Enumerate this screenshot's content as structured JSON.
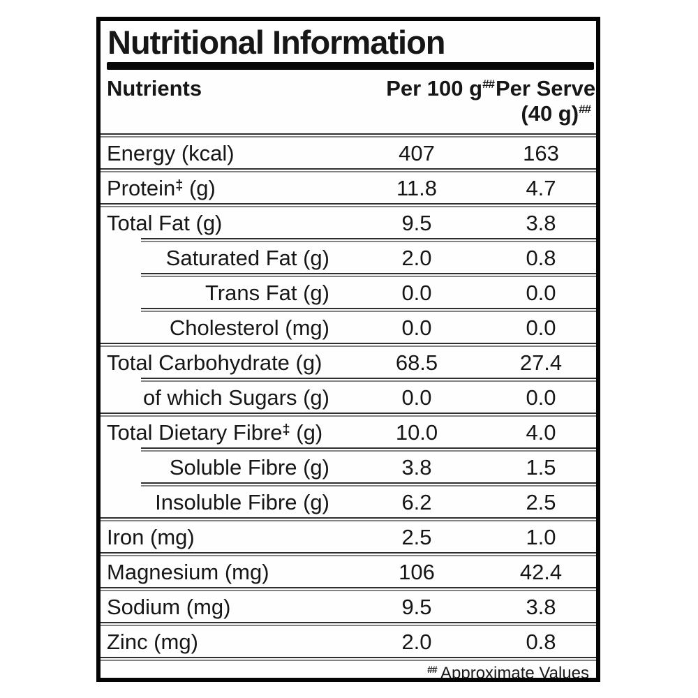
{
  "label": {
    "title": "Nutritional Information",
    "header": {
      "nutrients": "Nutrients",
      "per_100g": "Per 100 g",
      "per_100g_mark": "##",
      "per_serve_line1": "Per Serve",
      "per_serve_line2": "(40 g)",
      "per_serve_mark": "##"
    },
    "rows": [
      {
        "label": "Energy (kcal)",
        "mark": "",
        "suffix": "",
        "per_100g": "407",
        "per_serve": "163",
        "indent": false
      },
      {
        "label": "Protein",
        "mark": "‡",
        "suffix": " (g)",
        "per_100g": "11.8",
        "per_serve": "4.7",
        "indent": false
      },
      {
        "label": "Total Fat (g)",
        "mark": "",
        "suffix": "",
        "per_100g": "9.5",
        "per_serve": "3.8",
        "indent": false
      },
      {
        "label": "Saturated Fat (g)",
        "mark": "",
        "suffix": "",
        "per_100g": "2.0",
        "per_serve": "0.8",
        "indent": true
      },
      {
        "label": "Trans Fat (g)",
        "mark": "",
        "suffix": "",
        "per_100g": "0.0",
        "per_serve": "0.0",
        "indent": true
      },
      {
        "label": "Cholesterol (mg)",
        "mark": "",
        "suffix": "",
        "per_100g": "0.0",
        "per_serve": "0.0",
        "indent": true
      },
      {
        "label": "Total Carbohydrate (g)",
        "mark": "",
        "suffix": "",
        "per_100g": "68.5",
        "per_serve": "27.4",
        "indent": false
      },
      {
        "label": "of which Sugars (g)",
        "mark": "",
        "suffix": "",
        "per_100g": "0.0",
        "per_serve": "0.0",
        "indent": true
      },
      {
        "label": "Total Dietary Fibre",
        "mark": "‡",
        "suffix": " (g)",
        "per_100g": "10.0",
        "per_serve": "4.0",
        "indent": false
      },
      {
        "label": "Soluble Fibre (g)",
        "mark": "",
        "suffix": "",
        "per_100g": "3.8",
        "per_serve": "1.5",
        "indent": true
      },
      {
        "label": "Insoluble Fibre (g)",
        "mark": "",
        "suffix": "",
        "per_100g": "6.2",
        "per_serve": "2.5",
        "indent": true
      },
      {
        "label": "Iron (mg)",
        "mark": "",
        "suffix": "",
        "per_100g": "2.5",
        "per_serve": "1.0",
        "indent": false
      },
      {
        "label": "Magnesium (mg)",
        "mark": "",
        "suffix": "",
        "per_100g": "106",
        "per_serve": "42.4",
        "indent": false
      },
      {
        "label": "Sodium (mg)",
        "mark": "",
        "suffix": "",
        "per_100g": "9.5",
        "per_serve": "3.8",
        "indent": false
      },
      {
        "label": "Zinc (mg)",
        "mark": "",
        "suffix": "",
        "per_100g": "2.0",
        "per_serve": "0.8",
        "indent": false
      }
    ],
    "footnote": {
      "mark": "##",
      "text": "Approximate Values"
    }
  }
}
